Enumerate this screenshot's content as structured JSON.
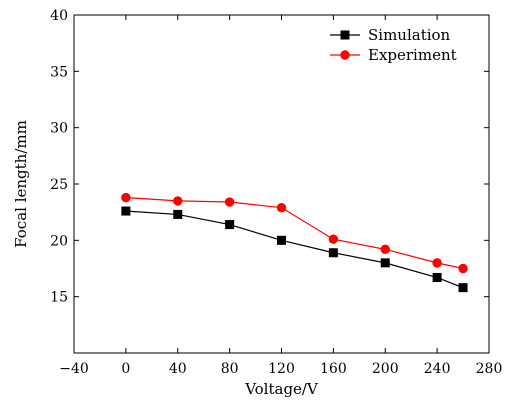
{
  "chart_data": {
    "type": "line",
    "xlabel": "Voltage/V",
    "ylabel": "Focal length/mm",
    "xlim": [
      -40,
      280
    ],
    "ylim": [
      10,
      40
    ],
    "xticks": [
      -40,
      0,
      40,
      80,
      120,
      160,
      200,
      240,
      280
    ],
    "xtick_labels": [
      "−40",
      "0",
      "40",
      "80",
      "120",
      "160",
      "200",
      "240",
      "280"
    ],
    "yticks": [
      15,
      20,
      25,
      30,
      35,
      40
    ],
    "ytick_labels": [
      "15",
      "20",
      "25",
      "30",
      "35",
      "40"
    ],
    "grid": false,
    "legend_position": "top-right",
    "series": [
      {
        "name": "Simulation",
        "color": "#000000",
        "marker": "square",
        "x": [
          0,
          40,
          80,
          120,
          160,
          200,
          240,
          260
        ],
        "y": [
          22.6,
          22.3,
          21.4,
          20.0,
          18.9,
          18.0,
          16.7,
          15.8
        ]
      },
      {
        "name": "Experiment",
        "color": "#ff0000",
        "marker": "circle",
        "x": [
          0,
          40,
          80,
          120,
          160,
          200,
          240,
          260
        ],
        "y": [
          23.8,
          23.5,
          23.4,
          22.9,
          20.1,
          19.2,
          18.0,
          17.5
        ]
      }
    ]
  }
}
